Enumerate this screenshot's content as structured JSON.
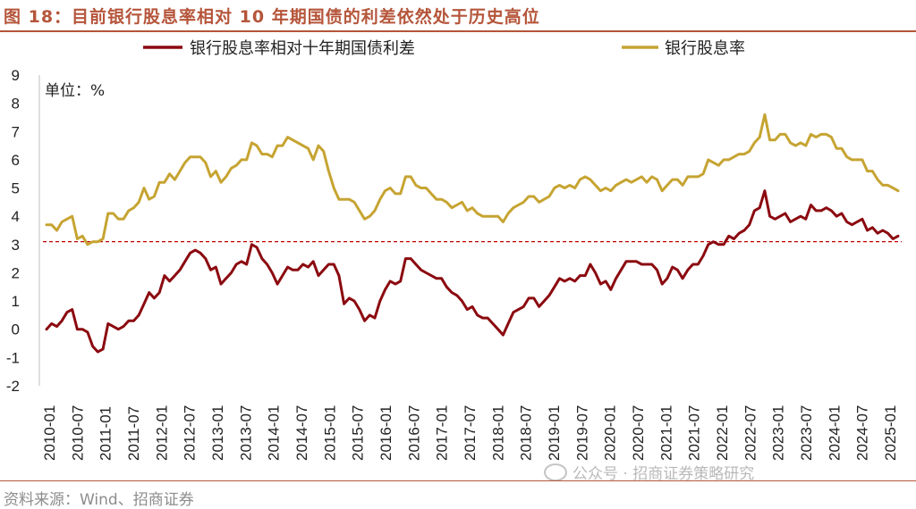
{
  "title": "图 18：目前银行股息率相对 10 年期国债的利差依然处于历史高位",
  "source": "资料来源：Wind、招商证券",
  "watermark": "公众号 · 招商证券策略研究",
  "chart_data": {
    "type": "line",
    "unit_label": "单位：%",
    "ylim": [
      -2,
      9
    ],
    "yticks": [
      "9",
      "8",
      "7",
      "6",
      "5",
      "4",
      "3",
      "2",
      "1",
      "0",
      "-1",
      "-2"
    ],
    "x_tick_labels": [
      "2010-01",
      "2010-07",
      "2011-01",
      "2011-07",
      "2012-01",
      "2012-07",
      "2013-01",
      "2013-07",
      "2014-01",
      "2014-07",
      "2015-01",
      "2015-07",
      "2016-01",
      "2016-07",
      "2017-01",
      "2017-07",
      "2018-01",
      "2018-07",
      "2019-01",
      "2019-07",
      "2020-01",
      "2020-07",
      "2021-01",
      "2021-07",
      "2022-01",
      "2022-07",
      "2023-01",
      "2023-07",
      "2024-01",
      "2024-07",
      "2025-01"
    ],
    "legend_position": "top",
    "reference_line": {
      "y": 3.1,
      "style": "dashed",
      "color": "#c00000"
    },
    "series": [
      {
        "name": "银行股息率相对十年期国债利差",
        "color": "#8b0a10",
        "values": [
          0.0,
          0.2,
          0.1,
          0.3,
          0.6,
          0.7,
          -0.0,
          0.0,
          -0.1,
          -0.6,
          -0.8,
          -0.7,
          0.2,
          0.1,
          0.0,
          0.1,
          0.3,
          0.3,
          0.5,
          0.9,
          1.3,
          1.1,
          1.3,
          1.9,
          1.7,
          1.9,
          2.1,
          2.4,
          2.7,
          2.8,
          2.7,
          2.5,
          2.1,
          2.2,
          1.6,
          1.8,
          2.0,
          2.3,
          2.4,
          2.3,
          3.0,
          2.9,
          2.5,
          2.3,
          2.0,
          1.6,
          1.9,
          2.2,
          2.1,
          2.1,
          2.3,
          2.2,
          2.4,
          1.9,
          2.1,
          2.3,
          2.3,
          1.9,
          0.9,
          1.1,
          1.0,
          0.7,
          0.3,
          0.5,
          0.4,
          1.0,
          1.4,
          1.7,
          1.6,
          1.7,
          2.5,
          2.5,
          2.3,
          2.1,
          2.0,
          1.9,
          1.8,
          1.8,
          1.5,
          1.3,
          1.2,
          1.0,
          0.7,
          0.8,
          0.5,
          0.4,
          0.4,
          0.2,
          0.0,
          -0.2,
          0.2,
          0.6,
          0.7,
          0.8,
          1.1,
          1.1,
          0.8,
          1.0,
          1.2,
          1.5,
          1.8,
          1.7,
          1.8,
          1.7,
          1.9,
          1.9,
          2.3,
          2.0,
          1.6,
          1.7,
          1.4,
          1.8,
          2.1,
          2.4,
          2.4,
          2.4,
          2.3,
          2.3,
          2.3,
          2.1,
          1.6,
          1.8,
          2.2,
          2.1,
          1.8,
          2.1,
          2.3,
          2.3,
          2.6,
          3.0,
          3.1,
          3.0,
          3.0,
          3.3,
          3.2,
          3.4,
          3.5,
          3.7,
          4.2,
          4.3,
          4.9,
          4.0,
          3.9,
          4.0,
          4.1,
          3.8,
          3.9,
          4.0,
          3.9,
          4.4,
          4.2,
          4.2,
          4.3,
          4.2,
          4.0,
          4.1,
          3.8,
          3.7,
          3.8,
          3.9,
          3.5,
          3.6,
          3.4,
          3.5,
          3.4,
          3.2,
          3.3
        ]
      },
      {
        "name": "银行股息率",
        "color": "#c6a432",
        "values": [
          3.7,
          3.7,
          3.5,
          3.8,
          3.9,
          4.0,
          3.2,
          3.3,
          3.0,
          3.1,
          3.1,
          3.2,
          4.1,
          4.1,
          3.9,
          3.9,
          4.2,
          4.3,
          4.5,
          5.0,
          4.6,
          4.7,
          5.2,
          5.2,
          5.5,
          5.3,
          5.6,
          5.9,
          6.1,
          6.1,
          6.1,
          5.9,
          5.4,
          5.6,
          5.2,
          5.4,
          5.7,
          5.8,
          6.0,
          6.0,
          6.6,
          6.5,
          6.2,
          6.2,
          6.1,
          6.5,
          6.5,
          6.8,
          6.7,
          6.6,
          6.5,
          6.4,
          6.0,
          6.5,
          6.3,
          5.6,
          5.0,
          4.6,
          4.6,
          4.6,
          4.5,
          4.2,
          3.9,
          4.0,
          4.2,
          4.6,
          4.9,
          5.0,
          4.8,
          4.8,
          5.4,
          5.4,
          5.1,
          5.0,
          5.0,
          4.8,
          4.6,
          4.6,
          4.5,
          4.3,
          4.4,
          4.5,
          4.2,
          4.3,
          4.1,
          4.0,
          4.0,
          4.0,
          4.0,
          3.8,
          4.1,
          4.3,
          4.4,
          4.5,
          4.7,
          4.7,
          4.5,
          4.6,
          4.7,
          5.0,
          5.1,
          5.0,
          5.1,
          5.0,
          5.3,
          5.4,
          5.3,
          5.1,
          4.9,
          5.0,
          4.9,
          5.1,
          5.2,
          5.3,
          5.2,
          5.3,
          5.4,
          5.2,
          5.4,
          5.3,
          4.9,
          5.1,
          5.3,
          5.3,
          5.1,
          5.4,
          5.4,
          5.4,
          5.5,
          6.0,
          5.9,
          5.8,
          6.0,
          6.0,
          6.1,
          6.2,
          6.2,
          6.3,
          6.6,
          6.8,
          7.6,
          6.7,
          6.7,
          6.9,
          6.9,
          6.6,
          6.5,
          6.6,
          6.5,
          6.9,
          6.8,
          6.9,
          6.9,
          6.8,
          6.4,
          6.4,
          6.1,
          6.0,
          6.0,
          6.0,
          5.6,
          5.6,
          5.3,
          5.1,
          5.1,
          5.0,
          4.9
        ]
      }
    ]
  }
}
